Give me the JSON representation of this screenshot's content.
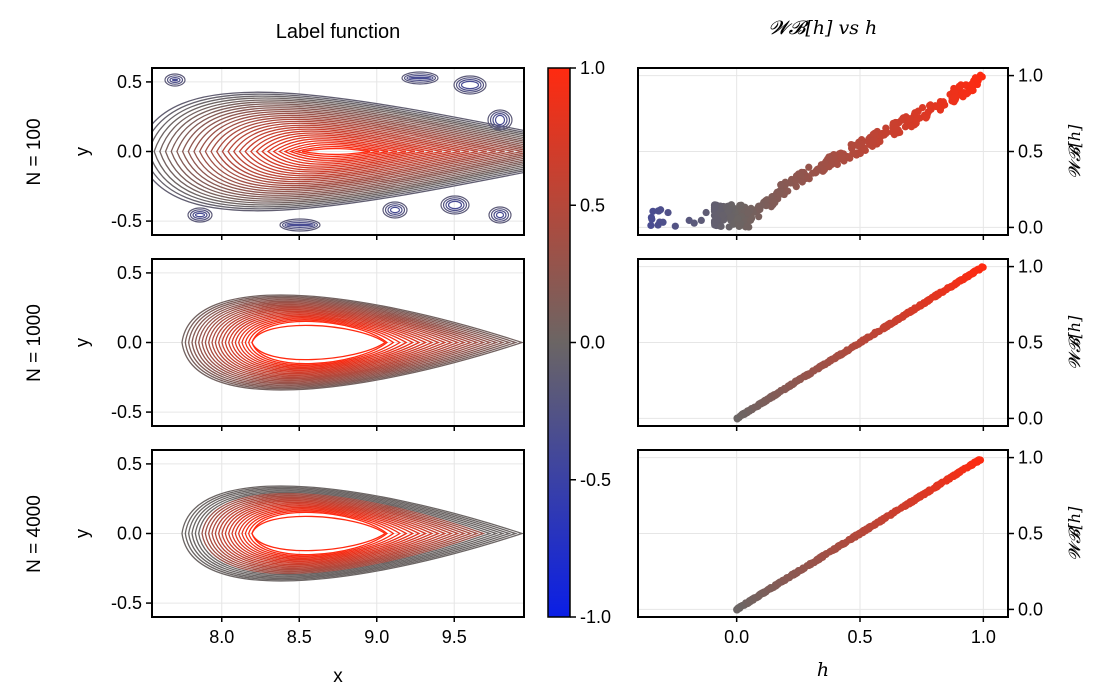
{
  "figure": {
    "left_title": "Label function",
    "right_title": "𝓦𝓑[h] vs h",
    "row_labels": [
      "N = 100",
      "N = 1000",
      "N = 4000"
    ]
  },
  "chart_data": [
    {
      "id": "contour-grid",
      "type": "contour",
      "title": "Label function",
      "xlabel": "x",
      "ylabel": "y",
      "xlim": [
        7.55,
        9.95
      ],
      "ylim": [
        -0.6,
        0.6
      ],
      "xticks": [
        "8.0",
        "8.5",
        "9.0",
        "9.5"
      ],
      "xtick_values": [
        8.0,
        8.5,
        9.0,
        9.5
      ],
      "yticks": [
        "0.5",
        "0.0",
        "-0.5"
      ],
      "ytick_values": [
        0.5,
        0.0,
        -0.5
      ],
      "grid": true,
      "panels": [
        {
          "row_label": "N = 100",
          "peak": {
            "x": 8.57,
            "y": 0.0
          },
          "levels": 30,
          "noise": "high"
        },
        {
          "row_label": "N = 1000",
          "peak": {
            "x": 8.55,
            "y": 0.0
          },
          "levels": 22,
          "noise": "low"
        },
        {
          "row_label": "N = 4000",
          "peak": {
            "x": 8.55,
            "y": 0.0
          },
          "levels": 22,
          "noise": "low"
        }
      ]
    },
    {
      "id": "colorbar",
      "type": "colorbar",
      "range": [
        -1.0,
        1.0
      ],
      "ticks": [
        "1.0",
        "0.5",
        "0.0",
        "-0.5",
        "-1.0"
      ],
      "tick_values": [
        1.0,
        0.5,
        0.0,
        -0.5,
        -1.0
      ],
      "colors": {
        "low": "#0a1ee6",
        "mid": "#6b6564",
        "high": "#ff2a10"
      }
    },
    {
      "id": "scatter-grid",
      "type": "scatter",
      "title": "𝓦𝓑[h] vs h",
      "xlabel": "h",
      "ylabel": "𝓦𝓑[h]",
      "xlim": [
        -0.4,
        1.1
      ],
      "ylim": [
        -0.05,
        1.05
      ],
      "xticks": [
        "0.0",
        "0.5",
        "1.0"
      ],
      "xtick_values": [
        0.0,
        0.5,
        1.0
      ],
      "yticks": [
        "1.0",
        "0.5",
        "0.0"
      ],
      "ytick_values": [
        1.0,
        0.5,
        0.0
      ],
      "grid": true,
      "panels": [
        {
          "row_label": "N = 100",
          "trend": [
            [
              0.0,
              0.05
            ],
            [
              0.1,
              0.12
            ],
            [
              0.2,
              0.27
            ],
            [
              0.3,
              0.36
            ],
            [
              0.4,
              0.45
            ],
            [
              0.5,
              0.53
            ],
            [
              0.6,
              0.62
            ],
            [
              0.7,
              0.7
            ],
            [
              0.8,
              0.79
            ],
            [
              0.9,
              0.89
            ],
            [
              1.0,
              0.97
            ]
          ],
          "cluster": {
            "h_range": [
              -0.35,
              0.15
            ],
            "wb_range": [
              0.0,
              0.15
            ]
          }
        },
        {
          "row_label": "N = 1000",
          "trend": [
            [
              0.0,
              0.0
            ],
            [
              0.25,
              0.25
            ],
            [
              0.5,
              0.5
            ],
            [
              0.75,
              0.75
            ],
            [
              1.0,
              1.0
            ]
          ]
        },
        {
          "row_label": "N = 4000",
          "trend": [
            [
              0.0,
              0.0
            ],
            [
              0.25,
              0.25
            ],
            [
              0.5,
              0.5
            ],
            [
              0.75,
              0.75
            ],
            [
              1.0,
              1.0
            ]
          ]
        }
      ]
    }
  ]
}
